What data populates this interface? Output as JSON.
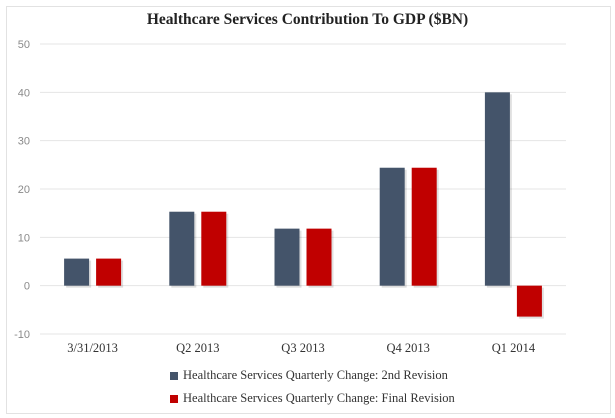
{
  "chart_data": {
    "type": "bar",
    "title": "Healthcare Services Contribution To GDP ($BN)",
    "xlabel": "",
    "ylabel": "",
    "ylim": [
      -10,
      50
    ],
    "yticks": [
      50,
      40,
      30,
      20,
      10,
      0,
      -10
    ],
    "ytick_labels": [
      "50",
      "40",
      "30",
      "20",
      "10",
      "0",
      "-10"
    ],
    "grid": true,
    "legend_position": "bottom",
    "categories": [
      "3/31/2013",
      "Q2 2013",
      "Q3 2013",
      "Q4 2013",
      "Q1 2014"
    ],
    "series": [
      {
        "name": "Healthcare Services Quarterly Change: 2nd Revision",
        "color": "#44546a",
        "values": [
          5.6,
          15.3,
          11.8,
          24.4,
          40.0
        ]
      },
      {
        "name": "Healthcare Services Quarterly Change: Final Revision",
        "color": "#c00000",
        "values": [
          5.6,
          15.3,
          11.8,
          24.4,
          -6.4
        ]
      }
    ]
  }
}
